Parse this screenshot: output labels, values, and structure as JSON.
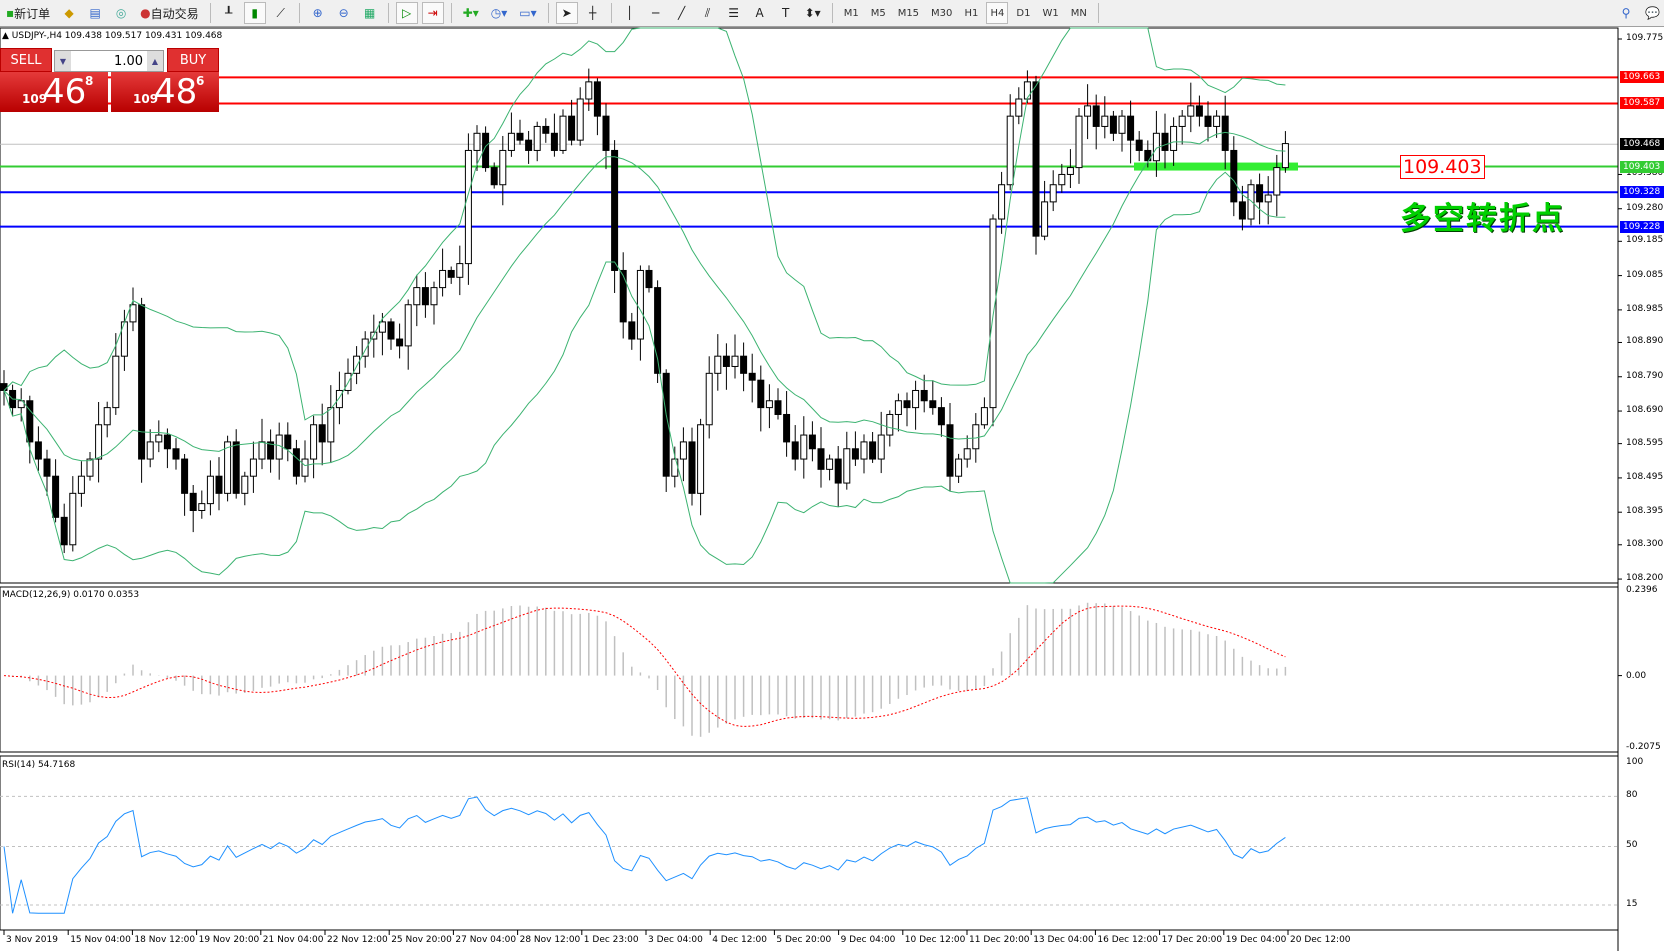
{
  "toolbar": {
    "new_order": "新订单",
    "auto_trading": "自动交易",
    "timeframes": [
      "M1",
      "M5",
      "M15",
      "M30",
      "H1",
      "H4",
      "D1",
      "W1",
      "MN"
    ],
    "active_timeframe": "H4"
  },
  "header": {
    "text": "USDJPY-,H4  109.438 109.517 109.431 109.468"
  },
  "trade": {
    "sell": "SELL",
    "buy": "BUY",
    "lot": "1.00",
    "bid_big": "109",
    "bid_main": "46",
    "bid_pip": "8",
    "ask_big": "109",
    "ask_main": "48",
    "ask_pip": "6"
  },
  "price_axis": {
    "ticks": [
      "109.775",
      "109.380",
      "109.280",
      "109.185",
      "109.085",
      "108.985",
      "108.890",
      "108.790",
      "108.690",
      "108.595",
      "108.495",
      "108.395",
      "108.300",
      "108.200"
    ],
    "tick_values": [
      109.775,
      109.38,
      109.28,
      109.185,
      109.085,
      108.985,
      108.89,
      108.79,
      108.69,
      108.595,
      108.495,
      108.395,
      108.3,
      108.2
    ]
  },
  "levels": [
    {
      "label": "109.663",
      "value": 109.663,
      "color": "#ff0000"
    },
    {
      "label": "109.587",
      "value": 109.587,
      "color": "#ff0000"
    },
    {
      "label": "109.468",
      "value": 109.468,
      "color": "#000000",
      "line": "#c0c0c0"
    },
    {
      "label": "109.403",
      "value": 109.403,
      "color": "#33cc33"
    },
    {
      "label": "109.328",
      "value": 109.328,
      "color": "#0000ff"
    },
    {
      "label": "109.228",
      "value": 109.228,
      "color": "#0000ff"
    }
  ],
  "annotations": {
    "price": "109.403",
    "text": "多空转折点"
  },
  "macd": {
    "label": "MACD(12,26,9) 0.0170 0.0353",
    "axis": [
      "0.2396",
      "0.00",
      "-0.2075"
    ]
  },
  "rsi": {
    "label": "RSI(14) 54.7168",
    "axis": [
      "100",
      "80",
      "50",
      "15"
    ]
  },
  "time_axis": [
    "3 Nov 2019",
    "15 Nov 04:00",
    "18 Nov 12:00",
    "19 Nov 20:00",
    "21 Nov 04:00",
    "22 Nov 12:00",
    "25 Nov 20:00",
    "27 Nov 04:00",
    "28 Nov 12:00",
    "1 Dec 23:00",
    "3 Dec 04:00",
    "4 Dec 12:00",
    "5 Dec 20:00",
    "9 Dec 04:00",
    "10 Dec 12:00",
    "11 Dec 20:00",
    "13 Dec 04:00",
    "16 Dec 12:00",
    "17 Dec 20:00",
    "19 Dec 04:00",
    "20 Dec 12:00"
  ],
  "chart_data": {
    "type": "candlestick",
    "symbol": "USDJPY-",
    "timeframe": "H4",
    "ylim": [
      108.2,
      109.775
    ],
    "closes": [
      108.75,
      108.7,
      108.72,
      108.6,
      108.55,
      108.5,
      108.38,
      108.3,
      108.45,
      108.5,
      108.55,
      108.65,
      108.7,
      108.85,
      108.95,
      109.0,
      108.55,
      108.6,
      108.62,
      108.58,
      108.55,
      108.45,
      108.4,
      108.42,
      108.5,
      108.45,
      108.6,
      108.45,
      108.5,
      108.55,
      108.6,
      108.55,
      108.62,
      108.58,
      108.5,
      108.55,
      108.65,
      108.6,
      108.7,
      108.75,
      108.8,
      108.85,
      108.9,
      108.92,
      108.95,
      108.9,
      108.88,
      109.0,
      109.05,
      109.0,
      109.05,
      109.1,
      109.08,
      109.12,
      109.45,
      109.5,
      109.4,
      109.35,
      109.45,
      109.5,
      109.48,
      109.45,
      109.52,
      109.5,
      109.45,
      109.55,
      109.48,
      109.6,
      109.65,
      109.55,
      109.45,
      109.1,
      108.95,
      108.9,
      109.1,
      109.05,
      108.8,
      108.5,
      108.55,
      108.6,
      108.45,
      108.65,
      108.8,
      108.85,
      108.82,
      108.85,
      108.8,
      108.78,
      108.7,
      108.72,
      108.68,
      108.6,
      108.55,
      108.62,
      108.58,
      108.52,
      108.55,
      108.48,
      108.58,
      108.55,
      108.6,
      108.55,
      108.62,
      108.68,
      108.72,
      108.7,
      108.75,
      108.72,
      108.7,
      108.65,
      108.5,
      108.55,
      108.58,
      108.65,
      108.7,
      109.25,
      109.35,
      109.55,
      109.6,
      109.65,
      109.2,
      109.3,
      109.35,
      109.38,
      109.4,
      109.55,
      109.58,
      109.52,
      109.55,
      109.5,
      109.55,
      109.48,
      109.45,
      109.42,
      109.5,
      109.45,
      109.52,
      109.55,
      109.58,
      109.55,
      109.52,
      109.55,
      109.45,
      109.3,
      109.25,
      109.35,
      109.3,
      109.32,
      109.4,
      109.47
    ],
    "indicators": [
      "Bollinger Bands(20,2)",
      "MACD(12,26,9)",
      "RSI(14)"
    ],
    "colors": {
      "bands": "#3cb371",
      "macd_hist": "#c0c0c0",
      "macd_signal": "#ff0000",
      "rsi": "#1e90ff"
    }
  }
}
